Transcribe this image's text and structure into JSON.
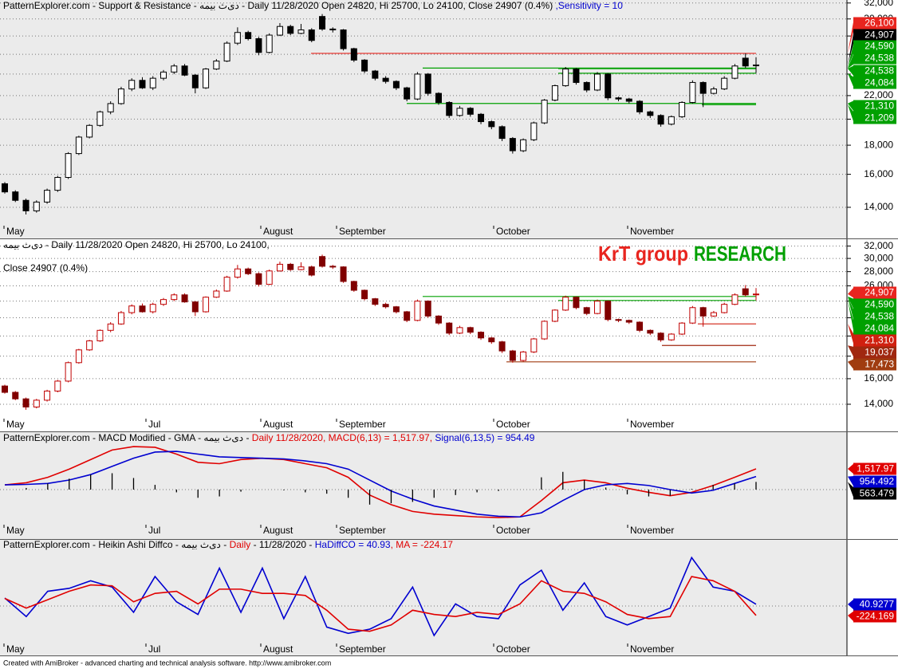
{
  "months": [
    "May",
    "Jul",
    "August",
    "September",
    "October",
    "November"
  ],
  "footer": "Created with AmiBroker - advanced charting and technical analysis software. http://www.amibroker.com",
  "chart_data": [
    {
      "type": "candlestick",
      "title_parts": [
        {
          "text": "PatternExplorer.com - Support & Resistance - دی‌ث بیمه - Daily 11/28/2020 Open 24820, Hi 25700, Lo 24100, Close 24907 (0.4%) ",
          "color": "#000000"
        },
        {
          "text": ",Sensitivity = 10",
          "color": "#0000d0"
        }
      ],
      "colors": {
        "up": "#ffffff",
        "down": "#000000",
        "outline": "#000000"
      },
      "open": [
        15400,
        14900,
        14400,
        13800,
        14300,
        15000,
        15800,
        17400,
        18600,
        19500,
        20600,
        21300,
        22600,
        23400,
        22700,
        23600,
        24200,
        24800,
        23900,
        22700,
        24500,
        25300,
        27200,
        28400,
        27700,
        26200,
        28100,
        29100,
        28300,
        28700,
        30300,
        28800,
        28700,
        26600,
        25400,
        24300,
        23600,
        23300,
        22700,
        21700,
        24000,
        22200,
        21400,
        20300,
        20900,
        20400,
        19800,
        19400,
        18500,
        17600,
        18400,
        19700,
        21600,
        22900,
        24500,
        23200,
        22500,
        24000,
        21800,
        21700,
        21500,
        20600,
        20300,
        19600,
        20200,
        21400,
        23200,
        22200,
        22600,
        23600,
        25600,
        24820
      ],
      "high": [
        15500,
        15000,
        14500,
        14400,
        15100,
        15900,
        17500,
        18700,
        19600,
        20700,
        21500,
        22800,
        23600,
        23700,
        23800,
        24400,
        25000,
        25000,
        24000,
        24600,
        25500,
        27400,
        29000,
        28600,
        27900,
        28300,
        29500,
        29300,
        29400,
        28900,
        30600,
        29000,
        28800,
        26700,
        25500,
        24400,
        23800,
        23400,
        22800,
        24200,
        24100,
        22300,
        21500,
        21100,
        21000,
        20500,
        19900,
        19500,
        18600,
        18500,
        19800,
        21700,
        23000,
        24700,
        24600,
        23300,
        24200,
        24100,
        21900,
        21800,
        21600,
        20700,
        20400,
        20300,
        21500,
        23400,
        23300,
        22800,
        23800,
        25000,
        26100,
        25700
      ],
      "low": [
        14800,
        14300,
        13600,
        13700,
        14200,
        14900,
        15700,
        17300,
        18500,
        19400,
        20400,
        21200,
        22400,
        22600,
        22500,
        23400,
        24000,
        23800,
        22200,
        22600,
        24400,
        25200,
        27000,
        27500,
        25900,
        26100,
        28000,
        28100,
        28200,
        27300,
        28600,
        28400,
        26400,
        25200,
        24100,
        23400,
        23100,
        22500,
        21500,
        21600,
        22000,
        21200,
        20100,
        20200,
        20200,
        19600,
        19200,
        18300,
        17400,
        17500,
        18300,
        19600,
        21500,
        22800,
        23000,
        22300,
        22400,
        21600,
        21500,
        21300,
        20400,
        20100,
        19400,
        19500,
        20100,
        21300,
        21000,
        22100,
        22500,
        23500,
        24600,
        24100
      ],
      "close": [
        14900,
        14400,
        13800,
        14300,
        15000,
        15800,
        17400,
        18600,
        19500,
        20600,
        21300,
        22600,
        23400,
        22700,
        23600,
        24200,
        24800,
        23900,
        22700,
        24500,
        25300,
        27200,
        28400,
        27700,
        26200,
        28100,
        29100,
        28300,
        28700,
        27500,
        28800,
        28700,
        26600,
        25400,
        24300,
        23600,
        23300,
        22700,
        21700,
        24000,
        22200,
        21400,
        20300,
        20900,
        20400,
        19800,
        19400,
        18500,
        17600,
        18400,
        19700,
        21600,
        22900,
        24500,
        23200,
        22500,
        24000,
        21800,
        21700,
        21500,
        20600,
        20300,
        19600,
        20200,
        21400,
        23200,
        22200,
        22600,
        23600,
        24800,
        24800,
        24907
      ],
      "log_scale": true,
      "grid": true,
      "ylim": [
        13040,
        32390
      ],
      "yticks": [
        {
          "value": 14000,
          "label": "14,000"
        },
        {
          "value": 16000,
          "label": "16,000"
        },
        {
          "value": 18000,
          "label": "18,000"
        },
        {
          "value": 20000,
          "label": "20,000"
        },
        {
          "value": 22000,
          "label": "22,000"
        },
        {
          "value": 24000,
          "label": "24,000"
        },
        {
          "value": 26000,
          "label": "26,000"
        },
        {
          "value": 28000,
          "label": "28,000"
        },
        {
          "value": 30000,
          "label": "30,000"
        },
        {
          "value": 32000,
          "label": "32,000"
        }
      ],
      "levels": [
        {
          "value": 26100,
          "label": "26,100",
          "color": "#e8251f"
        },
        {
          "value": 24907,
          "label": "24,907",
          "color": "#000000"
        },
        {
          "value": 24590,
          "label": "24,590",
          "color": "#00a000"
        },
        {
          "value": 24538,
          "label": "24,538",
          "color": "#00a000"
        },
        {
          "value": 24538,
          "label": "24,538",
          "color": "#00a000"
        },
        {
          "value": 24084,
          "label": "24,084",
          "color": "#00a000"
        },
        {
          "value": 21310,
          "label": "21,310",
          "color": "#00a000"
        },
        {
          "value": 21209,
          "label": "21,209",
          "color": "#00a000"
        }
      ]
    },
    {
      "type": "candlestick",
      "title_parts": [
        {
          "text": "دی‌ث بیمه - Daily 11/28/2020 Open 24820, Hi 25700, Lo 24100,",
          "color": "#000000"
        }
      ],
      "subtitle": "Close 24907 (0.4%)",
      "brand": [
        {
          "text": "KrT group",
          "color": "#e8251f"
        },
        {
          "text": "RESEARCH",
          "color": "#00a000"
        }
      ],
      "colors": {
        "up": "#ffffff",
        "down": "#800000",
        "outline": "#c00000"
      },
      "log_scale": true,
      "grid": true,
      "ylim": [
        13150,
        33170
      ],
      "yticks": [
        {
          "value": 14000,
          "label": "14,000"
        },
        {
          "value": 16000,
          "label": "16,000"
        },
        {
          "value": 18000,
          "label": "18,000"
        },
        {
          "value": 20000,
          "label": "20,000"
        },
        {
          "value": 22000,
          "label": "22,000"
        },
        {
          "value": 24000,
          "label": "24,000"
        },
        {
          "value": 26000,
          "label": "26,000"
        },
        {
          "value": 28000,
          "label": "28,000"
        },
        {
          "value": 30000,
          "label": "30,000"
        },
        {
          "value": 32000,
          "label": "32,000"
        }
      ],
      "levels": [
        {
          "value": 24907,
          "label": "24,907",
          "color": "#e8251f"
        },
        {
          "value": 24590,
          "label": "24,590",
          "color": "#00a000"
        },
        {
          "value": 24538,
          "label": "24,538",
          "color": "#00a000"
        },
        {
          "value": 24084,
          "label": "24,084",
          "color": "#00a000"
        },
        {
          "value": 21310,
          "label": "21,310",
          "color": "#d02010"
        },
        {
          "value": 19037,
          "label": "19,037",
          "color": "#a02810"
        },
        {
          "value": 17473,
          "label": "17,473",
          "color": "#a03c10"
        }
      ]
    },
    {
      "type": "macd",
      "title_parts": [
        {
          "text": "PatternExplorer.com - MACD Modified  - GMA - دی‌ث بیمه - ",
          "color": "#000000"
        },
        {
          "text": "Daily 11/28/2020, MACD(6,13) = 1,517.97, ",
          "color": "#e00000"
        },
        {
          "text": "Signal(6,13,5) = 954.49",
          "color": "#0000d0"
        }
      ],
      "ylim": [
        -2570,
        4090
      ],
      "grid": true,
      "series": [
        {
          "color": "#e00000",
          "style": "line",
          "last_label": "1,517.97",
          "values": [
            350,
            500,
            900,
            1500,
            2200,
            2900,
            3150,
            3100,
            2600,
            2000,
            1900,
            2200,
            2300,
            2200,
            1900,
            1600,
            900,
            -400,
            -1100,
            -1600,
            -1800,
            -1900,
            -2000,
            -2050,
            -2000,
            -800,
            500,
            700,
            500,
            100,
            -200,
            -450,
            -200,
            300,
            900,
            1517.97
          ]
        },
        {
          "color": "#0000d0",
          "style": "line",
          "last_label": "954.492",
          "values": [
            350,
            380,
            450,
            700,
            1100,
            1700,
            2300,
            2750,
            2800,
            2600,
            2400,
            2350,
            2300,
            2250,
            2100,
            1900,
            1500,
            700,
            -100,
            -700,
            -1200,
            -1500,
            -1800,
            -1950,
            -2000,
            -1700,
            -800,
            0,
            350,
            450,
            300,
            0,
            -250,
            -50,
            450,
            954.492
          ]
        },
        {
          "color": "#000000",
          "style": "bars",
          "last_label": "563.479",
          "values": [
            0,
            120,
            450,
            800,
            1100,
            1200,
            850,
            350,
            -200,
            -600,
            -500,
            -150,
            0,
            -50,
            -200,
            -300,
            -600,
            -1100,
            -1000,
            -900,
            -600,
            -400,
            -200,
            -100,
            0,
            900,
            1300,
            700,
            150,
            -350,
            -500,
            -450,
            50,
            350,
            450,
            563.479
          ]
        }
      ]
    },
    {
      "type": "oscillator",
      "title_parts": [
        {
          "text": "PatternExplorer.com - Heikin Ashi Diffco - دی‌ث بیمه - ",
          "color": "#000000"
        },
        {
          "text": "Daily ",
          "color": "#e00000"
        },
        {
          "text": " - 11/28/2020 - ",
          "color": "#000000"
        },
        {
          "text": "HaDiffCO = 40.93",
          "color": "#0000d0"
        },
        {
          "text": ", MA = -224.17",
          "color": "#e00000"
        }
      ],
      "ylim": [
        -1174,
        1534
      ],
      "grid": true,
      "series": [
        {
          "color": "#0000d0",
          "style": "line",
          "last_label": "40.9277",
          "values": [
            190,
            -250,
            350,
            420,
            600,
            450,
            -150,
            700,
            100,
            -200,
            900,
            -150,
            900,
            -300,
            700,
            -500,
            -650,
            -550,
            -300,
            450,
            -700,
            50,
            -250,
            -300,
            500,
            850,
            -100,
            550,
            -250,
            -450,
            -250,
            -50,
            1150,
            450,
            350,
            40.9277
          ]
        },
        {
          "color": "#e00000",
          "style": "line",
          "last_label": "-224.169",
          "values": [
            180,
            -50,
            150,
            350,
            500,
            480,
            100,
            300,
            350,
            50,
            400,
            400,
            300,
            300,
            250,
            -100,
            -550,
            -600,
            -450,
            -100,
            -200,
            -250,
            -150,
            -200,
            50,
            600,
            350,
            300,
            100,
            -200,
            -300,
            -250,
            700,
            600,
            350,
            -224.169
          ]
        }
      ]
    }
  ]
}
